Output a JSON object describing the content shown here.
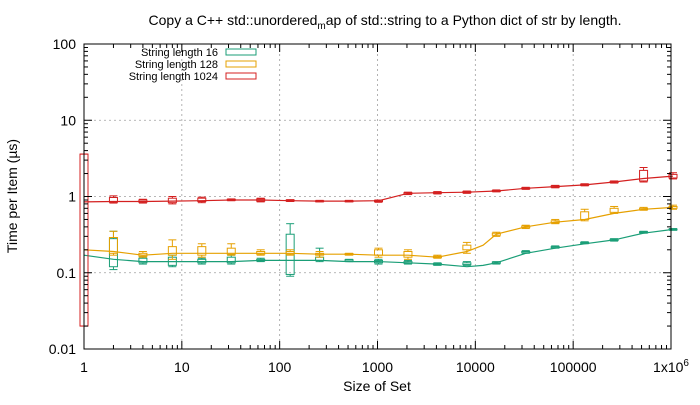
{
  "chart_data": {
    "type": "line",
    "title_parts": [
      "Copy a C++ std::unordered",
      "m",
      "ap of std::string to a Python dict of str by length."
    ],
    "xlabel": "Size of Set",
    "ylabel": "Time per Item (µs)",
    "xscale": "log",
    "yscale": "log",
    "xlim": [
      1,
      1000000
    ],
    "ylim": [
      0.01,
      100
    ],
    "x_ticks": [
      {
        "value": 1,
        "label": "1"
      },
      {
        "value": 10,
        "label": "10"
      },
      {
        "value": 100,
        "label": "100"
      },
      {
        "value": 1000,
        "label": "1000"
      },
      {
        "value": 10000,
        "label": "10000"
      },
      {
        "value": 100000,
        "label": "100000"
      },
      {
        "value": 1000000,
        "label": "1x10",
        "sup": "6"
      }
    ],
    "y_ticks": [
      {
        "value": 0.01,
        "label": "0.01"
      },
      {
        "value": 0.1,
        "label": "0.1"
      },
      {
        "value": 1,
        "label": "1"
      },
      {
        "value": 10,
        "label": "10"
      },
      {
        "value": 100,
        "label": "100"
      }
    ],
    "grid": true,
    "legend_position": "top-left",
    "series": [
      {
        "name": "String length 16",
        "color": "#1a9e77",
        "line": [
          [
            1,
            0.17
          ],
          [
            2,
            0.15
          ],
          [
            4,
            0.14
          ],
          [
            8,
            0.14
          ],
          [
            16,
            0.14
          ],
          [
            32,
            0.14
          ],
          [
            64,
            0.145
          ],
          [
            128,
            0.145
          ],
          [
            256,
            0.145
          ],
          [
            512,
            0.14
          ],
          [
            1024,
            0.14
          ],
          [
            2048,
            0.135
          ],
          [
            4096,
            0.13
          ],
          [
            8192,
            0.12
          ],
          [
            12000,
            0.125
          ],
          [
            16384,
            0.135
          ],
          [
            32768,
            0.18
          ],
          [
            65536,
            0.21
          ],
          [
            131072,
            0.24
          ],
          [
            262144,
            0.27
          ],
          [
            524288,
            0.33
          ],
          [
            1048576,
            0.37
          ]
        ],
        "boxes": [
          {
            "x": 2,
            "low": 0.11,
            "q1": 0.12,
            "q3": 0.28,
            "high": 0.35
          },
          {
            "x": 4,
            "low": 0.13,
            "q1": 0.135,
            "q3": 0.155,
            "high": 0.16
          },
          {
            "x": 8,
            "low": 0.12,
            "q1": 0.125,
            "q3": 0.16,
            "high": 0.17
          },
          {
            "x": 16,
            "low": 0.13,
            "q1": 0.135,
            "q3": 0.15,
            "high": 0.155
          },
          {
            "x": 32,
            "low": 0.13,
            "q1": 0.135,
            "q3": 0.16,
            "high": 0.17
          },
          {
            "x": 64,
            "low": 0.14,
            "q1": 0.143,
            "q3": 0.15,
            "high": 0.155
          },
          {
            "x": 128,
            "low": 0.09,
            "q1": 0.095,
            "q3": 0.32,
            "high": 0.44
          },
          {
            "x": 256,
            "low": 0.14,
            "q1": 0.145,
            "q3": 0.16,
            "high": 0.21
          },
          {
            "x": 512,
            "low": 0.14,
            "q1": 0.142,
            "q3": 0.148,
            "high": 0.15
          },
          {
            "x": 1024,
            "low": 0.13,
            "q1": 0.135,
            "q3": 0.145,
            "high": 0.15
          },
          {
            "x": 2048,
            "low": 0.13,
            "q1": 0.133,
            "q3": 0.14,
            "high": 0.145
          },
          {
            "x": 4096,
            "low": 0.125,
            "q1": 0.127,
            "q3": 0.132,
            "high": 0.135
          },
          {
            "x": 8192,
            "low": 0.125,
            "q1": 0.128,
            "q3": 0.135,
            "high": 0.14
          },
          {
            "x": 16384,
            "low": 0.13,
            "q1": 0.133,
            "q3": 0.138,
            "high": 0.14
          },
          {
            "x": 32768,
            "low": 0.18,
            "q1": 0.183,
            "q3": 0.19,
            "high": 0.195
          },
          {
            "x": 65536,
            "low": 0.21,
            "q1": 0.213,
            "q3": 0.22,
            "high": 0.225
          },
          {
            "x": 131072,
            "low": 0.24,
            "q1": 0.243,
            "q3": 0.25,
            "high": 0.255
          },
          {
            "x": 262144,
            "low": 0.26,
            "q1": 0.265,
            "q3": 0.275,
            "high": 0.28
          },
          {
            "x": 524288,
            "low": 0.33,
            "q1": 0.335,
            "q3": 0.345,
            "high": 0.35
          },
          {
            "x": 1048576,
            "low": 0.36,
            "q1": 0.365,
            "q3": 0.375,
            "high": 0.38
          }
        ]
      },
      {
        "name": "String length 128",
        "color": "#e6a000",
        "line": [
          [
            1,
            0.2
          ],
          [
            2,
            0.19
          ],
          [
            4,
            0.17
          ],
          [
            8,
            0.18
          ],
          [
            16,
            0.18
          ],
          [
            32,
            0.18
          ],
          [
            64,
            0.18
          ],
          [
            128,
            0.18
          ],
          [
            256,
            0.175
          ],
          [
            512,
            0.175
          ],
          [
            1024,
            0.17
          ],
          [
            2048,
            0.17
          ],
          [
            4096,
            0.16
          ],
          [
            8192,
            0.19
          ],
          [
            12000,
            0.23
          ],
          [
            16384,
            0.32
          ],
          [
            32768,
            0.4
          ],
          [
            65536,
            0.46
          ],
          [
            131072,
            0.5
          ],
          [
            262144,
            0.6
          ],
          [
            524288,
            0.68
          ],
          [
            1048576,
            0.72
          ]
        ],
        "boxes": [
          {
            "x": 2,
            "low": 0.17,
            "q1": 0.18,
            "q3": 0.29,
            "high": 0.35
          },
          {
            "x": 4,
            "low": 0.16,
            "q1": 0.165,
            "q3": 0.18,
            "high": 0.19
          },
          {
            "x": 8,
            "low": 0.15,
            "q1": 0.17,
            "q3": 0.22,
            "high": 0.27
          },
          {
            "x": 16,
            "low": 0.16,
            "q1": 0.17,
            "q3": 0.22,
            "high": 0.24
          },
          {
            "x": 32,
            "low": 0.17,
            "q1": 0.175,
            "q3": 0.21,
            "high": 0.24
          },
          {
            "x": 64,
            "low": 0.17,
            "q1": 0.175,
            "q3": 0.19,
            "high": 0.2
          },
          {
            "x": 128,
            "low": 0.17,
            "q1": 0.175,
            "q3": 0.19,
            "high": 0.2
          },
          {
            "x": 256,
            "low": 0.16,
            "q1": 0.17,
            "q3": 0.18,
            "high": 0.19
          },
          {
            "x": 512,
            "low": 0.17,
            "q1": 0.172,
            "q3": 0.178,
            "high": 0.18
          },
          {
            "x": 1024,
            "low": 0.16,
            "q1": 0.17,
            "q3": 0.2,
            "high": 0.21
          },
          {
            "x": 2048,
            "low": 0.15,
            "q1": 0.16,
            "q3": 0.19,
            "high": 0.2
          },
          {
            "x": 4096,
            "low": 0.155,
            "q1": 0.158,
            "q3": 0.165,
            "high": 0.17
          },
          {
            "x": 8192,
            "low": 0.18,
            "q1": 0.2,
            "q3": 0.23,
            "high": 0.25
          },
          {
            "x": 16384,
            "low": 0.3,
            "q1": 0.31,
            "q3": 0.33,
            "high": 0.34
          },
          {
            "x": 32768,
            "low": 0.38,
            "q1": 0.39,
            "q3": 0.41,
            "high": 0.42
          },
          {
            "x": 65536,
            "low": 0.44,
            "q1": 0.45,
            "q3": 0.48,
            "high": 0.5
          },
          {
            "x": 131072,
            "low": 0.48,
            "q1": 0.5,
            "q3": 0.63,
            "high": 0.68
          },
          {
            "x": 262144,
            "low": 0.6,
            "q1": 0.62,
            "q3": 0.7,
            "high": 0.74
          },
          {
            "x": 524288,
            "low": 0.66,
            "q1": 0.67,
            "q3": 0.7,
            "high": 0.72
          },
          {
            "x": 1048576,
            "low": 0.68,
            "q1": 0.7,
            "q3": 0.74,
            "high": 0.77
          }
        ]
      },
      {
        "name": "String length 1024",
        "color": "#d42020",
        "line": [
          [
            1,
            0.85
          ],
          [
            2,
            0.86
          ],
          [
            4,
            0.86
          ],
          [
            8,
            0.87
          ],
          [
            16,
            0.88
          ],
          [
            32,
            0.9
          ],
          [
            64,
            0.9
          ],
          [
            128,
            0.88
          ],
          [
            256,
            0.87
          ],
          [
            512,
            0.87
          ],
          [
            1024,
            0.88
          ],
          [
            2048,
            1.1
          ],
          [
            4096,
            1.12
          ],
          [
            8192,
            1.14
          ],
          [
            16384,
            1.18
          ],
          [
            32768,
            1.28
          ],
          [
            65536,
            1.35
          ],
          [
            131072,
            1.42
          ],
          [
            262144,
            1.55
          ],
          [
            524288,
            1.72
          ],
          [
            1048576,
            1.85
          ]
        ],
        "boxes": [
          {
            "x": 1,
            "low": 0.02,
            "q1": 0.02,
            "q3": 3.6,
            "high": 3.6
          },
          {
            "x": 2,
            "low": 0.82,
            "q1": 0.84,
            "q3": 0.97,
            "high": 1.02
          },
          {
            "x": 4,
            "low": 0.82,
            "q1": 0.84,
            "q3": 0.9,
            "high": 0.92
          },
          {
            "x": 8,
            "low": 0.8,
            "q1": 0.83,
            "q3": 0.95,
            "high": 1.0
          },
          {
            "x": 16,
            "low": 0.83,
            "q1": 0.86,
            "q3": 0.95,
            "high": 0.98
          },
          {
            "x": 32,
            "low": 0.88,
            "q1": 0.89,
            "q3": 0.92,
            "high": 0.93
          },
          {
            "x": 64,
            "low": 0.85,
            "q1": 0.87,
            "q3": 0.93,
            "high": 0.95
          },
          {
            "x": 128,
            "low": 0.86,
            "q1": 0.87,
            "q3": 0.9,
            "high": 0.91
          },
          {
            "x": 256,
            "low": 0.85,
            "q1": 0.86,
            "q3": 0.88,
            "high": 0.89
          },
          {
            "x": 512,
            "low": 0.85,
            "q1": 0.86,
            "q3": 0.88,
            "high": 0.89
          },
          {
            "x": 1024,
            "low": 0.84,
            "q1": 0.86,
            "q3": 0.89,
            "high": 0.9
          },
          {
            "x": 2048,
            "low": 1.06,
            "q1": 1.08,
            "q3": 1.12,
            "high": 1.14
          },
          {
            "x": 4096,
            "low": 1.08,
            "q1": 1.1,
            "q3": 1.14,
            "high": 1.16
          },
          {
            "x": 8192,
            "low": 1.1,
            "q1": 1.12,
            "q3": 1.16,
            "high": 1.18
          },
          {
            "x": 16384,
            "low": 1.15,
            "q1": 1.17,
            "q3": 1.2,
            "high": 1.22
          },
          {
            "x": 32768,
            "low": 1.24,
            "q1": 1.26,
            "q3": 1.3,
            "high": 1.32
          },
          {
            "x": 65536,
            "low": 1.3,
            "q1": 1.32,
            "q3": 1.38,
            "high": 1.4
          },
          {
            "x": 131072,
            "low": 1.38,
            "q1": 1.4,
            "q3": 1.45,
            "high": 1.47
          },
          {
            "x": 262144,
            "low": 1.5,
            "q1": 1.52,
            "q3": 1.58,
            "high": 1.6
          },
          {
            "x": 524288,
            "low": 1.55,
            "q1": 1.6,
            "q3": 2.2,
            "high": 2.4
          },
          {
            "x": 1048576,
            "low": 1.7,
            "q1": 1.75,
            "q3": 1.95,
            "high": 2.05
          }
        ]
      }
    ]
  }
}
